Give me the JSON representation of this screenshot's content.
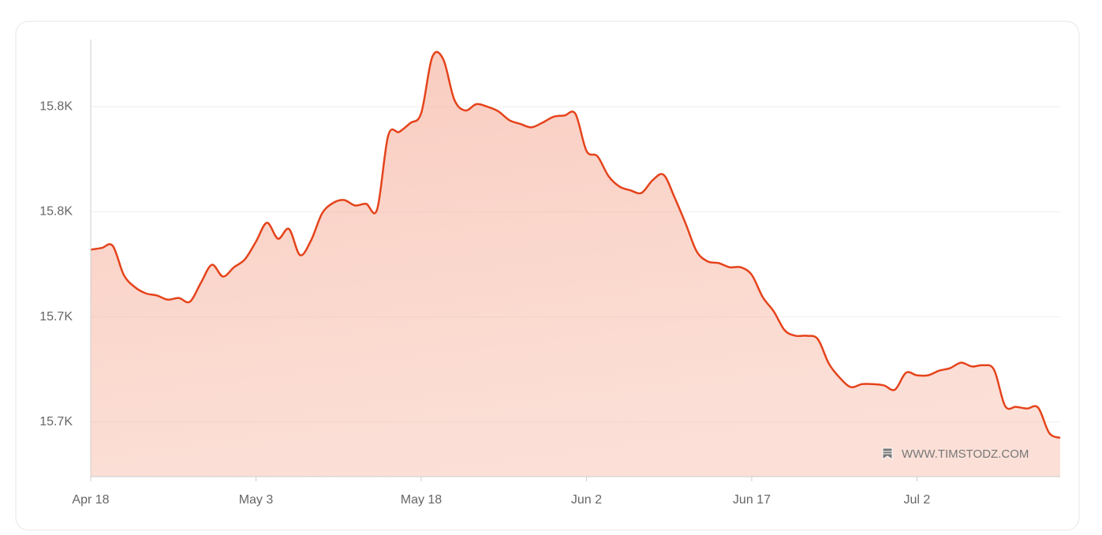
{
  "chart_data": {
    "type": "area",
    "x": [
      0,
      1,
      2,
      3,
      4,
      5,
      6,
      7,
      8,
      9,
      10,
      11,
      12,
      13,
      14,
      15,
      16,
      17,
      18,
      19,
      20,
      21,
      22,
      23,
      24,
      25,
      26,
      27,
      28,
      29,
      30,
      31,
      32,
      33,
      34,
      35,
      36,
      37,
      38,
      39,
      40,
      41,
      42,
      43,
      44,
      45,
      46,
      47,
      48,
      49,
      50,
      51,
      52,
      53,
      54,
      55,
      56,
      57,
      58,
      59,
      60,
      61,
      62,
      63,
      64,
      65,
      66,
      67,
      68,
      69,
      70,
      71,
      72,
      73,
      74,
      75,
      76,
      77,
      78,
      79,
      80,
      81,
      82,
      83,
      84,
      85,
      86,
      87,
      88
    ],
    "values": [
      15741.0,
      15741.4,
      15741.9,
      15735.0,
      15732.1,
      15730.6,
      15730.1,
      15729.1,
      15729.5,
      15728.6,
      15733.1,
      15737.4,
      15734.6,
      15736.8,
      15738.7,
      15742.9,
      15747.4,
      15743.6,
      15745.9,
      15739.7,
      15743.2,
      15749.6,
      15752.1,
      15752.8,
      15751.5,
      15751.9,
      15750.6,
      15768.1,
      15769.0,
      15771.1,
      15773.5,
      15786.8,
      15786.3,
      15776.7,
      15774.1,
      15775.6,
      15775.0,
      15773.9,
      15771.8,
      15770.9,
      15770.1,
      15771.2,
      15772.6,
      15772.9,
      15773.3,
      15764.5,
      15763.2,
      15758.5,
      15756.0,
      15755.1,
      15754.5,
      15757.5,
      15758.8,
      15753.4,
      15747.2,
      15740.6,
      15738.2,
      15737.8,
      15736.8,
      15736.8,
      15735.0,
      15729.7,
      15726.3,
      15721.8,
      15720.5,
      15720.5,
      15719.7,
      15713.9,
      15710.5,
      15708.3,
      15709.0,
      15709.0,
      15708.7,
      15707.7,
      15711.7,
      15711.1,
      15711.1,
      15712.2,
      15712.8,
      15714.1,
      15713.2,
      15713.5,
      15712.4,
      15703.8,
      15703.6,
      15703.2,
      15703.4,
      15697.4,
      15696.2
    ],
    "color": "#e5431b",
    "xlim": [
      0,
      88
    ],
    "xticks": [
      {
        "value": 0,
        "label": "Apr 18"
      },
      {
        "value": 15,
        "label": "May 3"
      },
      {
        "value": 30,
        "label": "May 18"
      },
      {
        "value": 45,
        "label": "Jun 2"
      },
      {
        "value": 60,
        "label": "Jun 17"
      },
      {
        "value": 75,
        "label": "Jul 2"
      }
    ],
    "ylim": [
      15687,
      15791
    ],
    "yticks": [
      {
        "value": 15700,
        "label": "15.7K"
      },
      {
        "value": 15725,
        "label": "15.7K"
      },
      {
        "value": 15750,
        "label": "15.8K"
      },
      {
        "value": 15775,
        "label": "15.8K"
      }
    ],
    "grid": true,
    "watermark": "WWW.TIMSTODZ.COM"
  }
}
